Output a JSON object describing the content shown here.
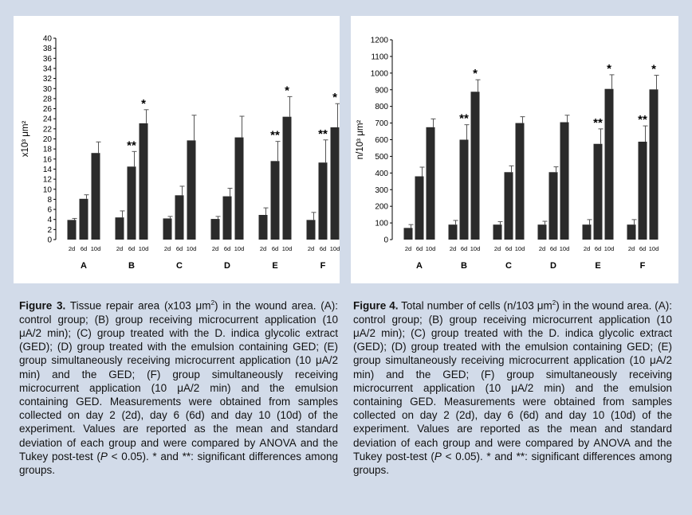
{
  "chart_data": [
    {
      "id": "fig3",
      "type": "bar",
      "ylabel": "x10³ μm²",
      "ylim": [
        0,
        40
      ],
      "ytick_step": 2,
      "groups": [
        "A",
        "B",
        "C",
        "D",
        "E",
        "F"
      ],
      "subcategories": [
        "2d",
        "6d",
        "10d"
      ],
      "values": [
        [
          3.9,
          8.1,
          17.2
        ],
        [
          4.4,
          14.5,
          23.1
        ],
        [
          4.2,
          8.8,
          19.7
        ],
        [
          4.1,
          8.6,
          20.3
        ],
        [
          4.9,
          15.6,
          24.4
        ],
        [
          3.9,
          15.3,
          22.3
        ]
      ],
      "errors": [
        [
          0.3,
          0.8,
          2.2
        ],
        [
          1.3,
          3.0,
          2.7
        ],
        [
          0.4,
          1.8,
          5.0
        ],
        [
          0.5,
          1.6,
          4.2
        ],
        [
          1.4,
          3.9,
          4.0
        ],
        [
          1.5,
          4.5,
          4.7
        ]
      ],
      "annotations": [
        [
          "",
          "",
          ""
        ],
        [
          "",
          "**",
          "*"
        ],
        [
          "",
          "",
          ""
        ],
        [
          "",
          "",
          ""
        ],
        [
          "",
          "**",
          "*"
        ],
        [
          "",
          "**",
          "*"
        ]
      ]
    },
    {
      "id": "fig4",
      "type": "bar",
      "ylabel": "n/10³ μm²",
      "ylim": [
        0,
        1200
      ],
      "ytick_step": 100,
      "groups": [
        "A",
        "B",
        "C",
        "D",
        "E",
        "F"
      ],
      "subcategories": [
        "2d",
        "6d",
        "10d"
      ],
      "values": [
        [
          70,
          380,
          675
        ],
        [
          90,
          600,
          888
        ],
        [
          90,
          405,
          700
        ],
        [
          90,
          405,
          705
        ],
        [
          90,
          575,
          905
        ],
        [
          90,
          588,
          902
        ]
      ],
      "errors": [
        [
          20,
          55,
          50
        ],
        [
          25,
          90,
          72
        ],
        [
          18,
          38,
          38
        ],
        [
          20,
          32,
          42
        ],
        [
          30,
          90,
          85
        ],
        [
          30,
          95,
          85
        ]
      ],
      "annotations": [
        [
          "",
          "",
          ""
        ],
        [
          "",
          "**",
          "*"
        ],
        [
          "",
          "",
          ""
        ],
        [
          "",
          "",
          ""
        ],
        [
          "",
          "**",
          "*"
        ],
        [
          "",
          "**",
          "*"
        ]
      ]
    }
  ],
  "captions": {
    "fig3": {
      "label": "Figure 3.",
      "text_a": " Tissue repair area (x103 μm",
      "sup": "2",
      "text_b": ") in the wound area. (A): control group; (B) group receiving microcurrent application (10 μA/2 min); (C) group treated with the D. indica glycolic extract (GED); (D) group treated with the emulsion containing GED; (E) group simultaneously receiving microcurrent application (10 μA/2 min) and the GED; (F) group simultaneously receiving microcurrent application (10 μA/2 min) and the emulsion containing GED. Measurements were obtained from samples collected on day 2 (2d), day 6 (6d) and day 10 (10d) of the experiment. Values are reported as the mean and standard deviation of each group and were compared by ANOVA and the Tukey post-test (",
      "p": "P",
      "text_c": " < 0.05). * and **: significant differences among groups."
    },
    "fig4": {
      "label": "Figure 4.",
      "text_a": " Total number of cells (n/103 μm",
      "sup": "2",
      "text_b": ") in the wound area. (A): control group; (B) group receiving microcurrent application (10 μA/2 min); (C) group treated with the D. indica glycolic extract (GED); (D) group treated with the emulsion containing GED; (E) group simultaneously receiving microcurrent application (10 μA/2 min) and the GED; (F) group simultaneously receiving microcurrent application (10 μA/2 min) and the emulsion containing GED. Measurements were obtained from samples collected on day 2 (2d), day 6 (6d) and day 10 (10d) of the experiment. Values are reported as the mean and standard deviation of each group and were compared by ANOVA and the Tukey post-test (",
      "p": "P",
      "text_c": " < 0.05). * and **: significant differences among groups."
    }
  },
  "colors": {
    "bar": "#2b2b2b",
    "background": "#d2dbe9",
    "panel": "#ffffff",
    "axis": "#000000"
  }
}
